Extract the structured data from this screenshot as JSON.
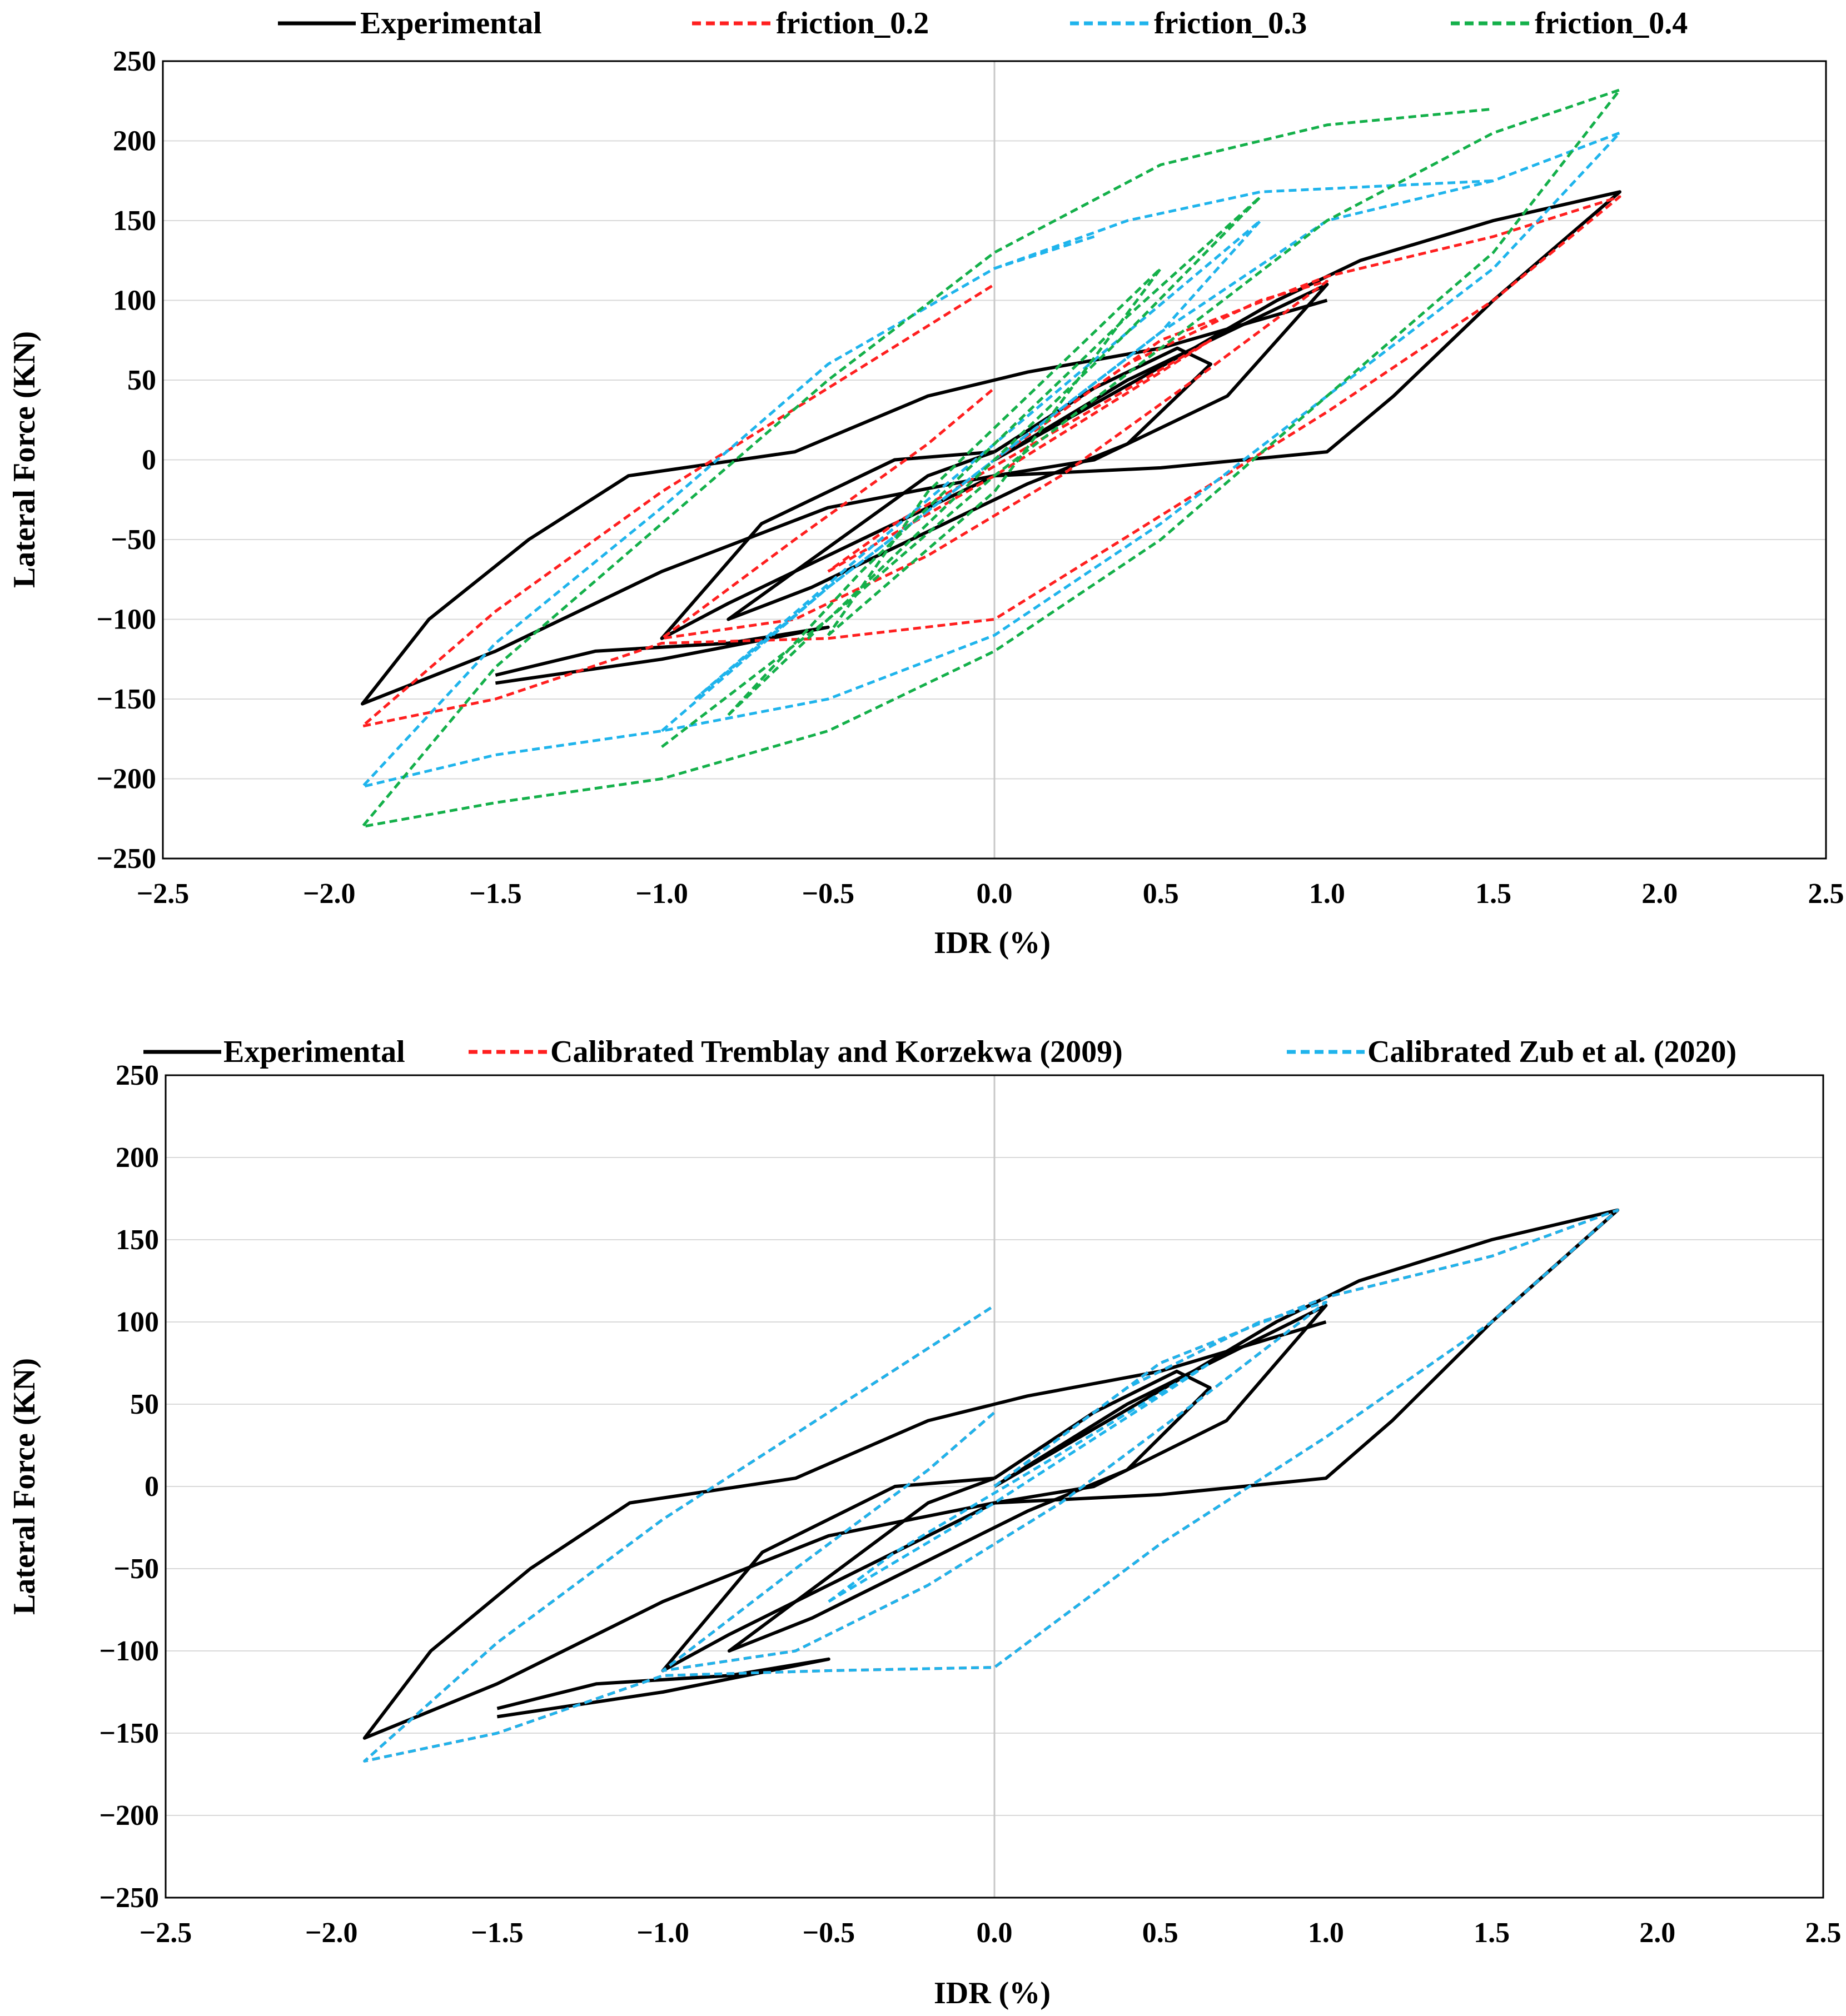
{
  "charts": [
    {
      "id": "top",
      "legend": [
        {
          "label": "Experimental",
          "color": "#000000",
          "dashed": false
        },
        {
          "label": "friction_0.2",
          "color": "#ff1f1f",
          "dashed": true
        },
        {
          "label": "friction_0.3",
          "color": "#1fb4ec",
          "dashed": true
        },
        {
          "label": "friction_0.4",
          "color": "#14b04a",
          "dashed": true
        }
      ]
    },
    {
      "id": "bottom",
      "legend": [
        {
          "label": "Experimental",
          "color": "#000000",
          "dashed": false
        },
        {
          "label": "Calibrated Tremblay and Korzekwa (2009)",
          "color": "#ff1f1f",
          "dashed": true
        },
        {
          "label": "Calibrated Zub et al. (2020)",
          "color": "#1fb4ec",
          "dashed": true
        }
      ]
    }
  ],
  "chart_data": [
    {
      "type": "line",
      "title": "",
      "xlabel": "IDR (%)",
      "ylabel": "Lateral Force (KN)",
      "xlim": [
        -2.5,
        2.5
      ],
      "ylim": [
        -250,
        250
      ],
      "xticks": [
        -2.5,
        -2.0,
        -1.5,
        -1.0,
        -0.5,
        0.0,
        0.5,
        1.0,
        1.5,
        2.0,
        2.5
      ],
      "yticks": [
        -250,
        -200,
        -150,
        -100,
        -50,
        0,
        50,
        100,
        150,
        200,
        250
      ],
      "xtick_labels": [
        "−2.5",
        "−2.0",
        "−1.5",
        "−1.0",
        "−0.5",
        "0.0",
        "0.5",
        "1.0",
        "1.5",
        "2.0",
        "2.5"
      ],
      "ytick_labels": [
        "−250",
        "−200",
        "−150",
        "−100",
        "−50",
        "0",
        "50",
        "100",
        "150",
        "200",
        "250"
      ],
      "grid": "horizontal",
      "legend_position": "top",
      "series": [
        {
          "name": "Experimental",
          "color": "#000000",
          "dashed": false,
          "loops": [
            {
              "x": [
                0,
                0.3,
                0.6,
                0.85,
                1.1,
                1.5,
                1.88,
                1.5,
                1.2,
                1.0,
                0.5,
                0,
                -0.5,
                -1.0,
                -1.5,
                -1.9,
                -1.7,
                -1.4,
                -1.1,
                -0.6,
                -0.2,
                0,
                0.1,
                0.5,
                1.0
              ],
              "y": [
                0,
                35,
                70,
                100,
                125,
                150,
                168,
                100,
                40,
                5,
                -5,
                -10,
                -30,
                -70,
                -120,
                -153,
                -100,
                -50,
                -10,
                5,
                40,
                50,
                55,
                70,
                100
              ]
            },
            {
              "x": [
                0,
                0.4,
                0.8,
                1.0,
                0.7,
                0.3,
                0,
                -0.4,
                -0.8,
                -1.0,
                -0.7,
                -0.3,
                0
              ],
              "y": [
                0,
                50,
                90,
                110,
                40,
                0,
                -10,
                -50,
                -90,
                -112,
                -40,
                0,
                5
              ]
            },
            {
              "x": [
                0,
                0.3,
                0.55,
                0.65,
                0.4,
                0.1,
                -0.2,
                -0.55,
                -0.8,
                -0.5,
                -0.2,
                0
              ],
              "y": [
                5,
                45,
                70,
                60,
                10,
                -15,
                -45,
                -80,
                -100,
                -55,
                -10,
                5
              ]
            },
            {
              "x": [
                -1.5,
                -1.2,
                -0.8,
                -0.5,
                -1.0,
                -1.5
              ],
              "y": [
                -135,
                -120,
                -115,
                -105,
                -125,
                -140
              ]
            }
          ]
        },
        {
          "name": "friction_0.2",
          "color": "#ff1f1f",
          "dashed": true,
          "loops": [
            {
              "x": [
                0,
                0.5,
                1.0,
                1.5,
                1.88,
                1.5,
                1.0,
                0.5,
                0,
                -0.5,
                -1.0,
                -1.5,
                -1.9,
                -1.5,
                -1.0,
                -0.5,
                0
              ],
              "y": [
                0,
                75,
                115,
                140,
                165,
                100,
                30,
                -35,
                -100,
                -112,
                -115,
                -150,
                -167,
                -95,
                -20,
                45,
                110
              ]
            },
            {
              "x": [
                0,
                0.4,
                0.8,
                1.0,
                0.6,
                0.2,
                -0.2,
                -0.6,
                -1.0,
                -0.6,
                -0.2,
                0
              ],
              "y": [
                0,
                60,
                100,
                112,
                50,
                -10,
                -60,
                -100,
                -112,
                -50,
                10,
                45
              ]
            },
            {
              "x": [
                -0.5,
                0,
                0.5,
                0.65,
                0.2,
                -0.3,
                -0.5
              ],
              "y": [
                -70,
                -10,
                55,
                75,
                20,
                -40,
                -70
              ]
            }
          ]
        },
        {
          "name": "friction_0.3",
          "color": "#1fb4ec",
          "dashed": true,
          "loops": [
            {
              "x": [
                -1.0,
                -0.5,
                0,
                0.5,
                1.0,
                1.5,
                1.88,
                1.5,
                1.0,
                0.5,
                0,
                -0.5,
                -1.0,
                -1.5,
                -1.9,
                -1.5,
                -1.0,
                -0.5,
                0,
                0.3
              ],
              "y": [
                -170,
                -80,
                0,
                80,
                150,
                175,
                205,
                120,
                40,
                -40,
                -110,
                -150,
                -170,
                -185,
                -205,
                -115,
                -30,
                60,
                120,
                140
              ]
            },
            {
              "x": [
                -0.9,
                -0.5,
                0,
                0.5,
                0.8,
                0.4,
                0,
                -0.4,
                -0.9
              ],
              "y": [
                -150,
                -80,
                0,
                80,
                150,
                80,
                10,
                -60,
                -150
              ]
            },
            {
              "x": [
                0,
                0.4,
                0.8,
                1.0,
                1.5
              ],
              "y": [
                120,
                150,
                168,
                170,
                175
              ]
            }
          ]
        },
        {
          "name": "friction_0.4",
          "color": "#14b04a",
          "dashed": true,
          "loops": [
            {
              "x": [
                -1.0,
                -0.5,
                0,
                0.5,
                1.0,
                1.5,
                1.88,
                1.5,
                1.0,
                0.5,
                0,
                -0.5,
                -1.0,
                -1.5,
                -1.9,
                -1.5,
                -1.0,
                -0.5,
                0,
                0.5,
                1.0,
                1.5
              ],
              "y": [
                -180,
                -100,
                -10,
                70,
                150,
                205,
                232,
                130,
                40,
                -50,
                -120,
                -170,
                -200,
                -215,
                -230,
                -130,
                -40,
                50,
                130,
                185,
                210,
                220
              ]
            },
            {
              "x": [
                -0.8,
                -0.4,
                0,
                0.4,
                0.8,
                0.4,
                0,
                -0.4,
                -0.8
              ],
              "y": [
                -160,
                -80,
                0,
                80,
                165,
                90,
                10,
                -70,
                -160
              ]
            },
            {
              "x": [
                -0.5,
                0,
                0.5,
                0.2,
                -0.2,
                -0.5
              ],
              "y": [
                -110,
                -20,
                120,
                60,
                -20,
                -110
              ]
            }
          ]
        }
      ]
    },
    {
      "type": "line",
      "title": "",
      "xlabel": "IDR (%)",
      "ylabel": "Lateral Force (KN)",
      "xlim": [
        -2.5,
        2.5
      ],
      "ylim": [
        -250,
        250
      ],
      "xticks": [
        -2.5,
        -2.0,
        -1.5,
        -1.0,
        -0.5,
        0.0,
        0.5,
        1.0,
        1.5,
        2.0,
        2.5
      ],
      "yticks": [
        -250,
        -200,
        -150,
        -100,
        -50,
        0,
        50,
        100,
        150,
        200,
        250
      ],
      "xtick_labels": [
        "−2.5",
        "−2.0",
        "−1.5",
        "−1.0",
        "−0.5",
        "0.0",
        "0.5",
        "1.0",
        "1.5",
        "2.0",
        "2.5"
      ],
      "ytick_labels": [
        "−250",
        "−200",
        "−150",
        "−100",
        "−50",
        "0",
        "50",
        "100",
        "150",
        "200",
        "250"
      ],
      "grid": "horizontal",
      "legend_position": "top",
      "series": [
        {
          "name": "Experimental",
          "color": "#000000",
          "dashed": false,
          "loops": [
            {
              "x": [
                0,
                0.3,
                0.6,
                0.85,
                1.1,
                1.5,
                1.88,
                1.5,
                1.2,
                1.0,
                0.5,
                0,
                -0.5,
                -1.0,
                -1.5,
                -1.9,
                -1.7,
                -1.4,
                -1.1,
                -0.6,
                -0.2,
                0,
                0.1,
                0.5,
                1.0
              ],
              "y": [
                0,
                35,
                70,
                100,
                125,
                150,
                168,
                100,
                40,
                5,
                -5,
                -10,
                -30,
                -70,
                -120,
                -153,
                -100,
                -50,
                -10,
                5,
                40,
                50,
                55,
                70,
                100
              ]
            },
            {
              "x": [
                0,
                0.4,
                0.8,
                1.0,
                0.7,
                0.3,
                0,
                -0.4,
                -0.8,
                -1.0,
                -0.7,
                -0.3,
                0
              ],
              "y": [
                0,
                50,
                90,
                110,
                40,
                0,
                -10,
                -50,
                -90,
                -112,
                -40,
                0,
                5
              ]
            },
            {
              "x": [
                0,
                0.3,
                0.55,
                0.65,
                0.4,
                0.1,
                -0.2,
                -0.55,
                -0.8,
                -0.5,
                -0.2,
                0
              ],
              "y": [
                5,
                45,
                70,
                60,
                10,
                -15,
                -45,
                -80,
                -100,
                -55,
                -10,
                5
              ]
            },
            {
              "x": [
                -1.5,
                -1.2,
                -0.8,
                -0.5,
                -1.0,
                -1.5
              ],
              "y": [
                -135,
                -120,
                -115,
                -105,
                -125,
                -140
              ]
            }
          ]
        },
        {
          "name": "Calibrated Tremblay and Korzekwa (2009)",
          "color": "#ff1f1f",
          "dashed": true,
          "loops": [
            {
              "x": [
                0,
                0.5,
                1.0,
                1.5,
                1.88,
                1.5,
                1.0,
                0.5,
                0,
                -0.5,
                -1.0,
                -1.5,
                -1.9,
                -1.5,
                -1.0,
                -0.5,
                0
              ],
              "y": [
                0,
                75,
                115,
                140,
                168,
                100,
                30,
                -35,
                -110,
                -112,
                -115,
                -150,
                -167,
                -95,
                -20,
                45,
                110
              ]
            },
            {
              "x": [
                0,
                0.4,
                0.8,
                1.0,
                0.6,
                0.2,
                -0.2,
                -0.6,
                -1.0,
                -0.6,
                -0.2,
                0
              ],
              "y": [
                0,
                60,
                100,
                112,
                50,
                -10,
                -60,
                -100,
                -112,
                -50,
                10,
                45
              ]
            }
          ]
        },
        {
          "name": "Calibrated Zub et al. (2020)",
          "color": "#1fb4ec",
          "dashed": true,
          "loops": [
            {
              "x": [
                0,
                0.5,
                1.0,
                1.5,
                1.88,
                1.5,
                1.0,
                0.5,
                0,
                -0.5,
                -1.0,
                -1.5,
                -1.9,
                -1.5,
                -1.0,
                -0.5,
                0
              ],
              "y": [
                0,
                75,
                115,
                140,
                168,
                100,
                30,
                -35,
                -110,
                -112,
                -115,
                -150,
                -167,
                -95,
                -20,
                45,
                110
              ]
            },
            {
              "x": [
                0,
                0.4,
                0.8,
                1.0,
                0.6,
                0.2,
                -0.2,
                -0.6,
                -1.0,
                -0.6,
                -0.2,
                0
              ],
              "y": [
                0,
                60,
                100,
                112,
                50,
                -10,
                -60,
                -100,
                -112,
                -50,
                10,
                45
              ]
            },
            {
              "x": [
                -0.5,
                0,
                0.5,
                0.65,
                0.2,
                -0.3,
                -0.5
              ],
              "y": [
                -70,
                -10,
                55,
                75,
                20,
                -40,
                -70
              ]
            }
          ]
        }
      ]
    }
  ]
}
